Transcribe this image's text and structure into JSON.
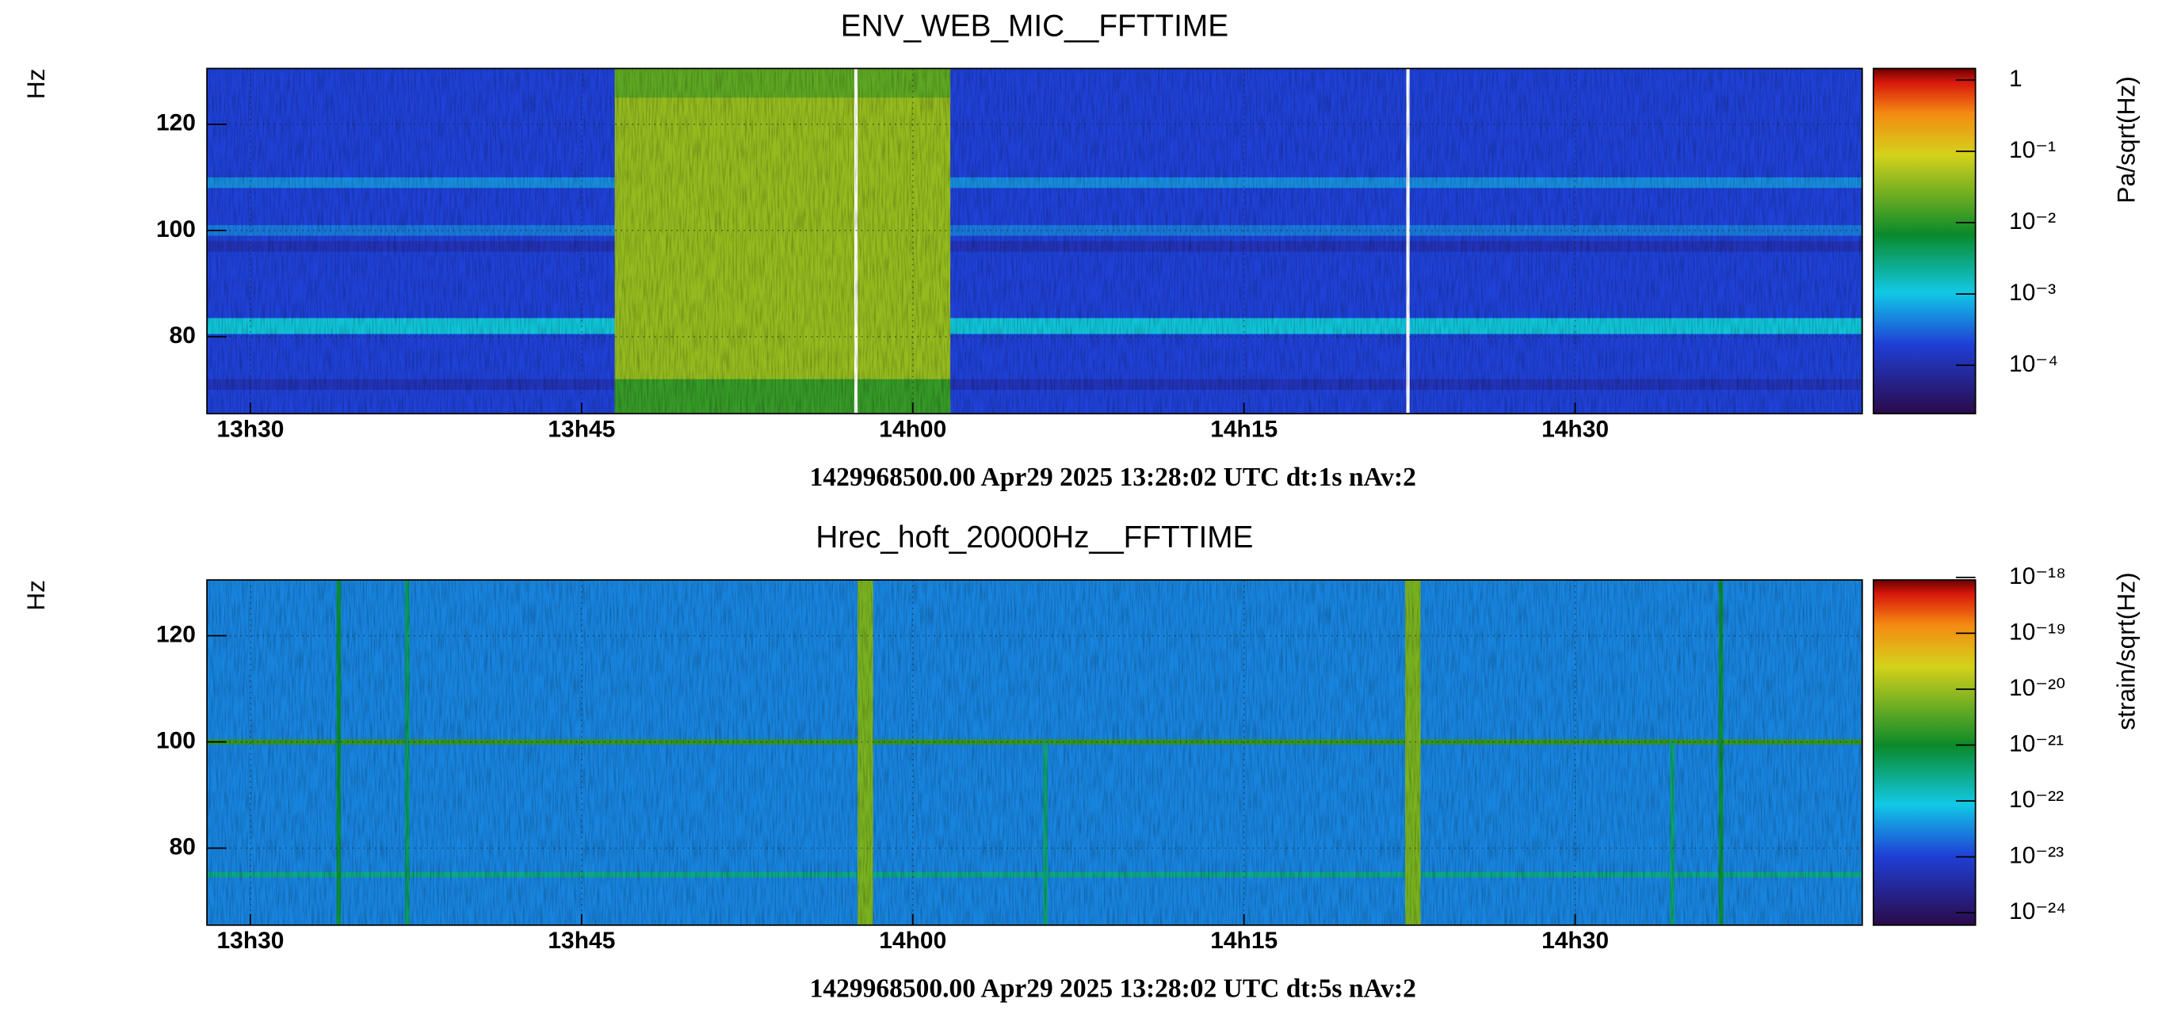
{
  "chart_data": [
    {
      "type": "spectrogram",
      "title": "ENV_WEB_MIC__FFTTIME",
      "footer": "1429968500.00 Apr29 2025 13:28:02 UTC dt:1s nAv:2",
      "ylabel": "Hz",
      "zlabel": "Pa/sqrt(Hz)",
      "xlim": [
        -1.97,
        73.0
      ],
      "xticks": [
        {
          "value": 0,
          "label": "13h30"
        },
        {
          "value": 15,
          "label": "13h45"
        },
        {
          "value": 30,
          "label": "14h00"
        },
        {
          "value": 45,
          "label": "14h15"
        },
        {
          "value": 60,
          "label": "14h30"
        }
      ],
      "ylim": [
        65.5,
        130.5
      ],
      "yticks": [
        80,
        100,
        120
      ],
      "zlim": [
        2.1e-05,
        1.45
      ],
      "zscale": "log",
      "zticks": [
        1,
        {
          "value": 0.1,
          "label": "10⁻¹"
        },
        {
          "value": 0.01,
          "label": "10⁻²"
        },
        {
          "value": 0.001,
          "label": "10⁻³"
        },
        {
          "value": 0.0001,
          "label": "10⁻⁴"
        }
      ],
      "grid": true,
      "background": 0.0002,
      "features": [
        {
          "x": [
            -1.97,
            73.0
          ],
          "y": [
            70,
            72
          ],
          "value": 0.00012
        },
        {
          "x": [
            -1.97,
            73.0
          ],
          "y": [
            80.5,
            83.5
          ],
          "value": 0.0012
        },
        {
          "x": [
            -1.97,
            73.0
          ],
          "y": [
            96,
            98
          ],
          "value": 0.00012
        },
        {
          "x": [
            -1.97,
            73.0
          ],
          "y": [
            99,
            101
          ],
          "value": 0.0004
        },
        {
          "x": [
            -1.97,
            73.0
          ],
          "y": [
            108,
            110
          ],
          "value": 0.0005
        },
        {
          "x": [
            16.5,
            31.7
          ],
          "y": [
            65.5,
            130.5
          ],
          "value": 0.04
        },
        {
          "x": [
            16.5,
            31.7
          ],
          "y": [
            65.5,
            72
          ],
          "value": 0.012
        },
        {
          "x": [
            16.5,
            31.7
          ],
          "y": [
            125,
            130.5
          ],
          "value": 0.02
        },
        {
          "x": [
            27.35,
            27.5
          ],
          "y": [
            65.5,
            130.5
          ],
          "value": null
        },
        {
          "x": [
            52.35,
            52.5
          ],
          "y": [
            65.5,
            130.5
          ],
          "value": null
        }
      ]
    },
    {
      "type": "spectrogram",
      "title": "Hrec_hoft_20000Hz__FFTTIME",
      "footer": "1429968500.00 Apr29 2025 13:28:02 UTC dt:5s nAv:2",
      "ylabel": "Hz",
      "zlabel": "strain/sqrt(Hz)",
      "xlim": [
        -1.97,
        73.0
      ],
      "xticks": [
        {
          "value": 0,
          "label": "13h30"
        },
        {
          "value": 15,
          "label": "13h45"
        },
        {
          "value": 30,
          "label": "14h00"
        },
        {
          "value": 45,
          "label": "14h15"
        },
        {
          "value": 60,
          "label": "14h30"
        }
      ],
      "ylim": [
        65.5,
        130.5
      ],
      "yticks": [
        80,
        100,
        120
      ],
      "zlim": [
        6e-25,
        9e-19
      ],
      "zscale": "log",
      "zticks": [
        {
          "value": 1e-18,
          "label": "10⁻¹⁸"
        },
        {
          "value": 1e-19,
          "label": "10⁻¹⁹"
        },
        {
          "value": 1e-20,
          "label": "10⁻²⁰"
        },
        {
          "value": 1e-21,
          "label": "10⁻²¹"
        },
        {
          "value": 1e-22,
          "label": "10⁻²²"
        },
        {
          "value": 1e-23,
          "label": "10⁻²³"
        },
        {
          "value": 1e-24,
          "label": "10⁻²⁴"
        }
      ],
      "grid": true,
      "background": 3e-23,
      "features": [
        {
          "x": [
            -1.97,
            73.0
          ],
          "y": [
            74.5,
            75.5
          ],
          "value": 3e-22
        },
        {
          "x": [
            -1.97,
            73.0
          ],
          "y": [
            99.5,
            100.5
          ],
          "value": 2e-21
        },
        {
          "x": [
            3.9,
            4.1
          ],
          "y": [
            65.5,
            130.5
          ],
          "value": 8e-22
        },
        {
          "x": [
            7.0,
            7.2
          ],
          "y": [
            65.5,
            130.5
          ],
          "value": 5e-22
        },
        {
          "x": [
            35.9,
            36.1
          ],
          "y": [
            65.5,
            100
          ],
          "value": 4e-22
        },
        {
          "x": [
            64.3,
            64.5
          ],
          "y": [
            65.5,
            100
          ],
          "value": 4e-22
        },
        {
          "x": [
            66.5,
            66.7
          ],
          "y": [
            65.5,
            130.5
          ],
          "value": 8e-22
        },
        {
          "x": [
            27.5,
            28.2
          ],
          "y": [
            65.5,
            130.5
          ],
          "value": 6e-21
        },
        {
          "x": [
            52.3,
            53.0
          ],
          "y": [
            65.5,
            130.5
          ],
          "value": 6e-21
        }
      ]
    }
  ]
}
